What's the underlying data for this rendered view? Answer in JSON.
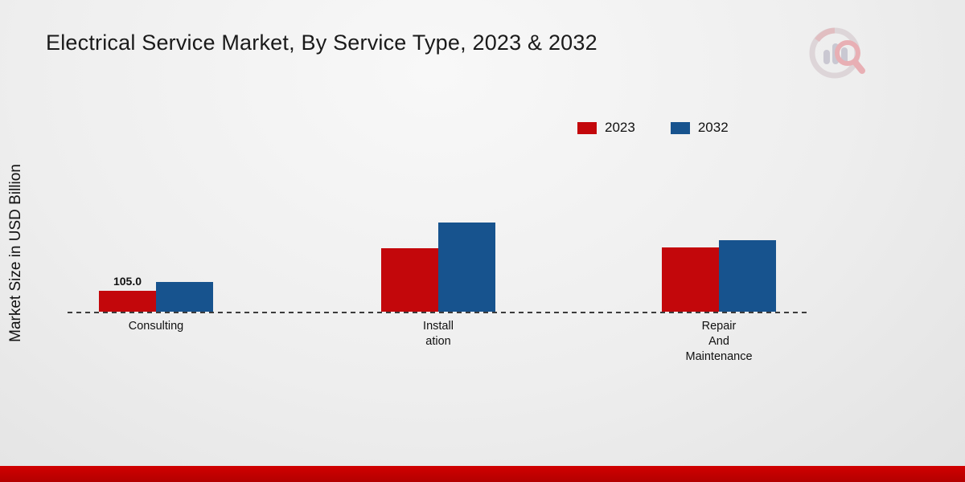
{
  "title": "Electrical Service Market, By Service Type, 2023 & 2032",
  "ylabel": "Market Size in USD Billion",
  "legend": {
    "items": [
      {
        "label": "2023",
        "color": "#c3070b"
      },
      {
        "label": "2032",
        "color": "#17538e"
      }
    ]
  },
  "chart_data": {
    "type": "bar",
    "categories": [
      "Consulting",
      "Installation",
      "Repair And Maintenance"
    ],
    "category_lines": [
      [
        "Consulting"
      ],
      [
        "Install",
        "ation"
      ],
      [
        "Repair",
        "And",
        "Maintenance"
      ]
    ],
    "series": [
      {
        "name": "2023",
        "color": "#c3070b",
        "values": [
          105.0,
          320,
          325
        ]
      },
      {
        "name": "2032",
        "color": "#17538e",
        "values": [
          150,
          450,
          360
        ]
      }
    ],
    "bar_label": {
      "text": "105.0",
      "series_index": 0,
      "category_index": 0
    },
    "title": "Electrical Service Market, By Service Type, 2023 & 2032",
    "xlabel": "",
    "ylabel": "Market Size in USD Billion",
    "ylim": [
      0,
      500
    ],
    "grid": false,
    "legend_position": "top-right",
    "baseline_style": "dashed"
  },
  "footer": {
    "color": "#c00000"
  }
}
